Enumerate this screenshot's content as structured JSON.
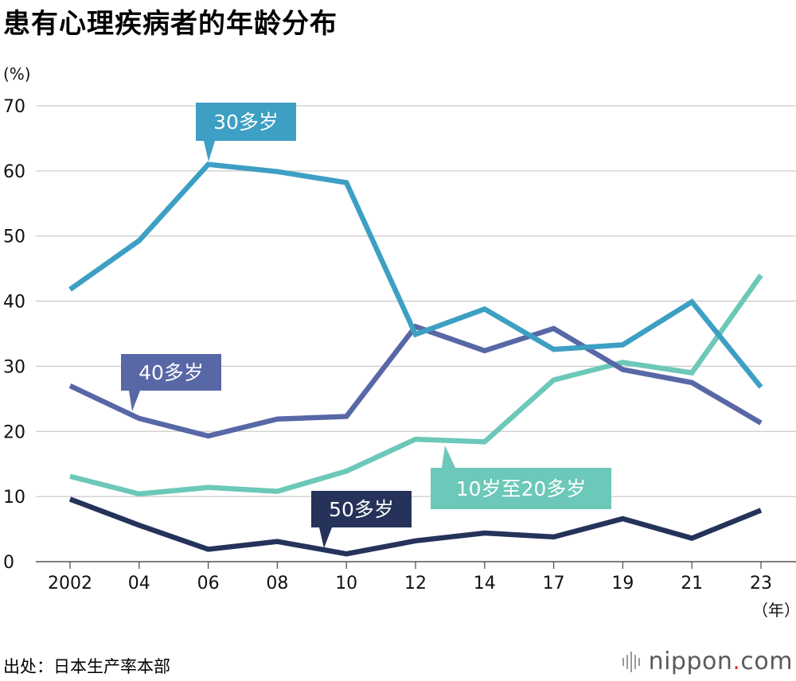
{
  "title": "患有心理疾病者的年龄分布",
  "unit_y": "(%)",
  "unit_x": "（年）",
  "source": "出处：日本生产率本部",
  "logo": {
    "main": "nippon",
    "dot": ".",
    "com": "com",
    "icon": "sound-bars-icon"
  },
  "colors": {
    "s30": "#3d9fc3",
    "s40": "#5867a6",
    "s10": "#6cc8b8",
    "s50": "#25325a",
    "grid": "#cccccc"
  },
  "chart_data": {
    "type": "line",
    "title": "患有心理疾病者的年龄分布",
    "ylabel": "(%)",
    "xlabel": "（年）",
    "ylim": [
      0,
      70
    ],
    "yticks": [
      "0",
      "10",
      "20",
      "30",
      "40",
      "50",
      "60",
      "70"
    ],
    "categories": [
      "2002",
      "04",
      "06",
      "08",
      "10",
      "12",
      "14",
      "17",
      "19",
      "21",
      "23"
    ],
    "series": [
      {
        "name": "30多岁",
        "color": "#3d9fc3",
        "values": [
          41.8,
          49.3,
          61.0,
          59.9,
          58.2,
          34.9,
          38.8,
          32.6,
          33.3,
          39.9,
          26.8
        ]
      },
      {
        "name": "40多岁",
        "color": "#5867a6",
        "values": [
          27.0,
          22.0,
          19.3,
          21.9,
          22.3,
          36.1,
          32.4,
          35.8,
          29.5,
          27.5,
          21.3
        ]
      },
      {
        "name": "10岁至20多岁",
        "color": "#6cc8b8",
        "values": [
          13.1,
          10.4,
          11.4,
          10.8,
          13.9,
          18.8,
          18.4,
          27.9,
          30.6,
          29.0,
          44.0
        ]
      },
      {
        "name": "50多岁",
        "color": "#25325a",
        "values": [
          9.6,
          5.6,
          1.9,
          3.1,
          1.2,
          3.2,
          4.4,
          3.8,
          6.6,
          3.6,
          7.9
        ]
      }
    ]
  }
}
